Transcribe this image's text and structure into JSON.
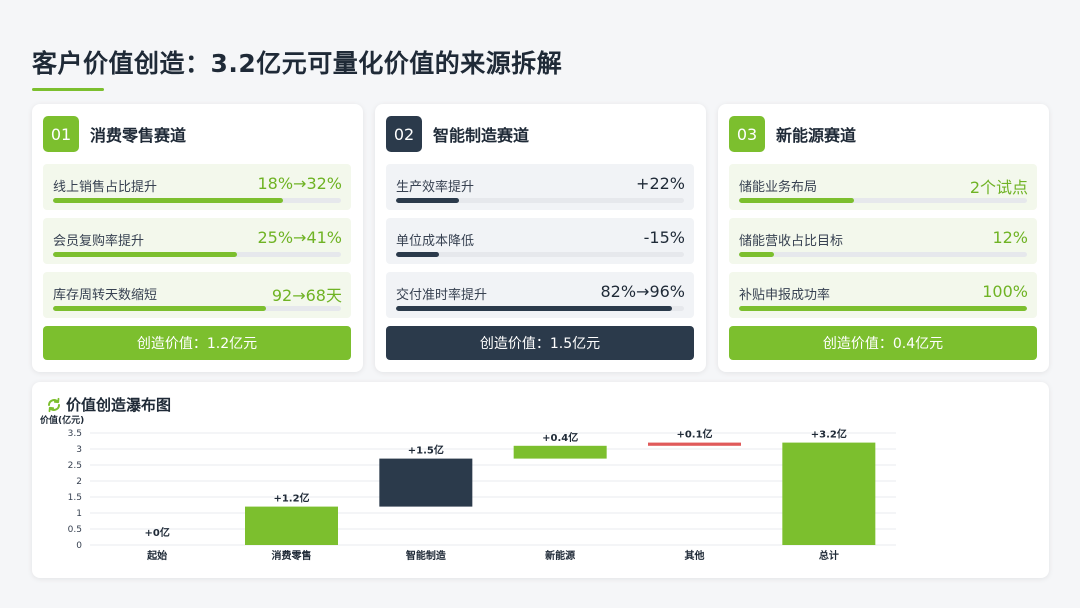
{
  "page": {
    "title": "客户价值创造：3.2亿元可量化价值的来源拆解"
  },
  "colors": {
    "green": "#7cbf2e",
    "navy": "#2b3a4b",
    "red": "#e05a5a"
  },
  "cards": [
    {
      "number": "01",
      "title": "消费零售赛道",
      "theme": "green",
      "metrics": [
        {
          "label": "线上销售占比提升",
          "value": "18%→32%",
          "progress": 0.8
        },
        {
          "label": "会员复购率提升",
          "value": "25%→41%",
          "progress": 0.64
        },
        {
          "label": "库存周转天数缩短",
          "value": "92→68天",
          "progress": 0.74
        }
      ],
      "footer": "创造价值：1.2亿元"
    },
    {
      "number": "02",
      "title": "智能制造赛道",
      "theme": "navy",
      "metrics": [
        {
          "label": "生产效率提升",
          "value": "+22%",
          "progress": 0.22
        },
        {
          "label": "单位成本降低",
          "value": "-15%",
          "progress": 0.15
        },
        {
          "label": "交付准时率提升",
          "value": "82%→96%",
          "progress": 0.96
        }
      ],
      "footer": "创造价值：1.5亿元"
    },
    {
      "number": "03",
      "title": "新能源赛道",
      "theme": "green",
      "metrics": [
        {
          "label": "储能业务布局",
          "value": "2个试点",
          "progress": 0.4
        },
        {
          "label": "储能营收占比目标",
          "value": "12%",
          "progress": 0.12
        },
        {
          "label": "补贴申报成功率",
          "value": "100%",
          "progress": 1.0
        }
      ],
      "footer": "创造价值：0.4亿元"
    }
  ],
  "chart_panel": {
    "title": "价值创造瀑布图",
    "icon": "refresh-icon"
  },
  "chart_data": {
    "type": "bar",
    "subtype": "waterfall",
    "ylabel": "价值(亿元)",
    "ylim": [
      0,
      3.5
    ],
    "yticks": [
      "0",
      "0.5",
      "1",
      "1.5",
      "2",
      "2.5",
      "3",
      "3.5"
    ],
    "grid": true,
    "categories": [
      "起始",
      "消费零售",
      "智能制造",
      "新能源",
      "其他",
      "总计"
    ],
    "bars": [
      {
        "base": 0,
        "value": 0,
        "label": "+0亿",
        "color": "#7cbf2e"
      },
      {
        "base": 0,
        "value": 1.2,
        "label": "+1.2亿",
        "color": "#7cbf2e"
      },
      {
        "base": 1.2,
        "value": 1.5,
        "label": "+1.5亿",
        "color": "#2b3a4b"
      },
      {
        "base": 2.7,
        "value": 0.4,
        "label": "+0.4亿",
        "color": "#7cbf2e"
      },
      {
        "base": 3.1,
        "value": 0.1,
        "label": "+0.1亿",
        "color": "#e05a5a"
      },
      {
        "base": 0,
        "value": 3.2,
        "label": "+3.2亿",
        "color": "#7cbf2e"
      }
    ]
  }
}
